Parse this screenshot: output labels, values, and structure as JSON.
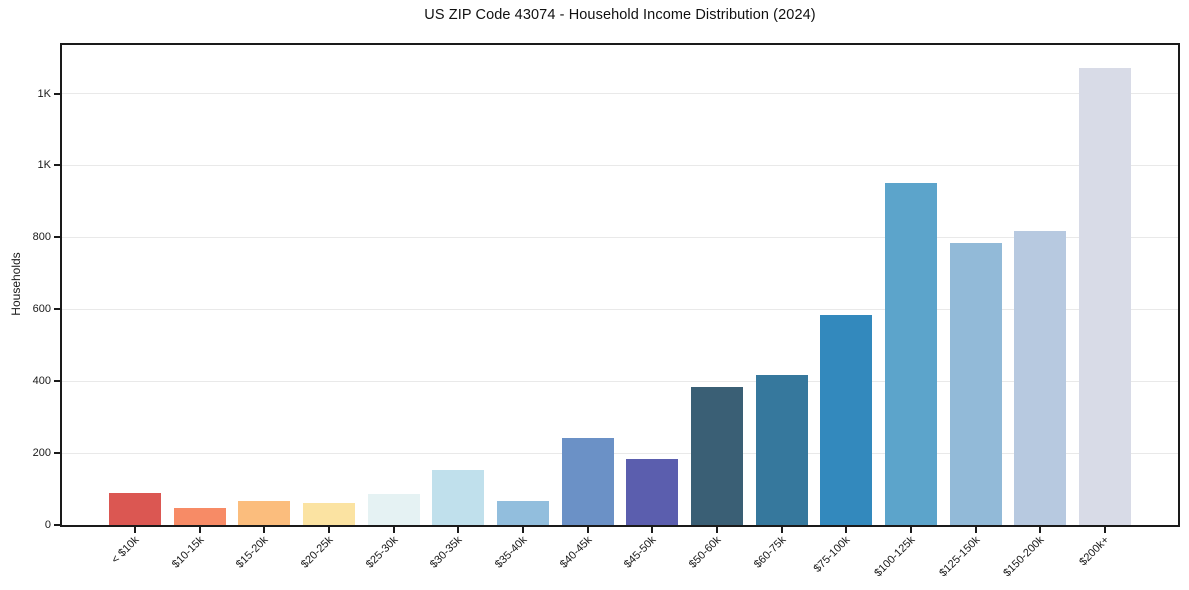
{
  "figure": {
    "background": "#ffffff"
  },
  "chart_data": {
    "type": "bar",
    "title": "US ZIP Code 43074 - Household Income Distribution (2024)",
    "xlabel": "",
    "ylabel": "Households",
    "categories": [
      "< $10k",
      "$10-15k",
      "$15-20k",
      "$20-25k",
      "$25-30k",
      "$30-35k",
      "$35-40k",
      "$40-45k",
      "$45-50k",
      "$50-60k",
      "$60-75k",
      "$75-100k",
      "$100-125k",
      "$125-150k",
      "$150-200k",
      "$200k+"
    ],
    "values": [
      88,
      46,
      67,
      60,
      86,
      152,
      66,
      242,
      184,
      384,
      417,
      585,
      950,
      785,
      818,
      1270
    ],
    "bar_colors": [
      "#db5752",
      "#f78b66",
      "#fbbd7d",
      "#fbe3a2",
      "#e5f2f3",
      "#c0e0ec",
      "#92bedd",
      "#6b91c6",
      "#5b5eae",
      "#3a5f75",
      "#36789d",
      "#3389bd",
      "#5ca4cb",
      "#92bad8",
      "#b7c9e0",
      "#d8dbe7"
    ],
    "ylim": [
      0,
      1335
    ],
    "yticks": [
      {
        "value": 0,
        "label": "0"
      },
      {
        "value": 200,
        "label": "200"
      },
      {
        "value": 400,
        "label": "400"
      },
      {
        "value": 600,
        "label": "600"
      },
      {
        "value": 800,
        "label": "800"
      },
      {
        "value": 1000,
        "label": "1K"
      },
      {
        "value": 1200,
        "label": "1K"
      }
    ],
    "grid": "horizontal-only",
    "legend": "none",
    "xtick_rotation": 45,
    "colors": {
      "spine": "#1a1a1a",
      "gridline": "#e9e9e9",
      "text": "#1a1a1a"
    }
  }
}
